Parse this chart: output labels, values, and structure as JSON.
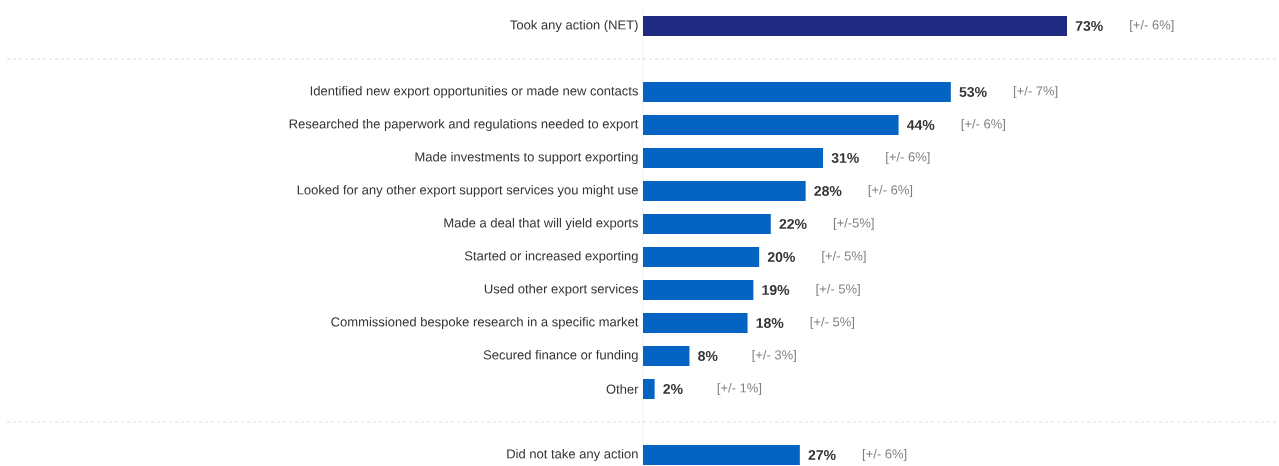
{
  "chart_data": {
    "type": "bar",
    "orientation": "horizontal",
    "categories": [
      "Took any action (NET)",
      null,
      "Identified new export opportunities or made new contacts",
      "Researched the paperwork and regulations needed to export",
      "Made investments to support exporting",
      "Looked for any other export support services you might use",
      "Made a deal that will yield exports",
      "Started or increased exporting",
      "Used other export services",
      "Commissioned bespoke research in a specific market",
      "Secured finance or funding",
      "Other",
      null,
      "Did not take any action"
    ],
    "values": [
      73,
      null,
      53,
      44,
      31,
      28,
      22,
      20,
      19,
      18,
      8,
      2,
      null,
      27
    ],
    "colors": [
      "#1f2a80",
      null,
      "#0563c1",
      "#0563c1",
      "#0563c1",
      "#0563c1",
      "#0563c1",
      "#0563c1",
      "#0563c1",
      "#0563c1",
      "#0563c1",
      "#0563c1",
      null,
      "#0563c1"
    ],
    "value_labels": [
      "73%",
      null,
      "53%",
      "44%",
      "31%",
      "28%",
      "22%",
      "20%",
      "19%",
      "18%",
      "8%",
      "2%",
      null,
      "27%"
    ],
    "annotations": [
      "[+/- 6%]",
      "[+/- 7%]",
      "[+/- 6%]",
      "[+/- 6%]",
      "[+/- 6%]",
      "[+/-5%]",
      "[+/- 5%]",
      "[+/- 5%]",
      "[+/- 5%]",
      "[+/- 3%]",
      "[+/- 1%]",
      "[+/- 6%]"
    ]
  }
}
